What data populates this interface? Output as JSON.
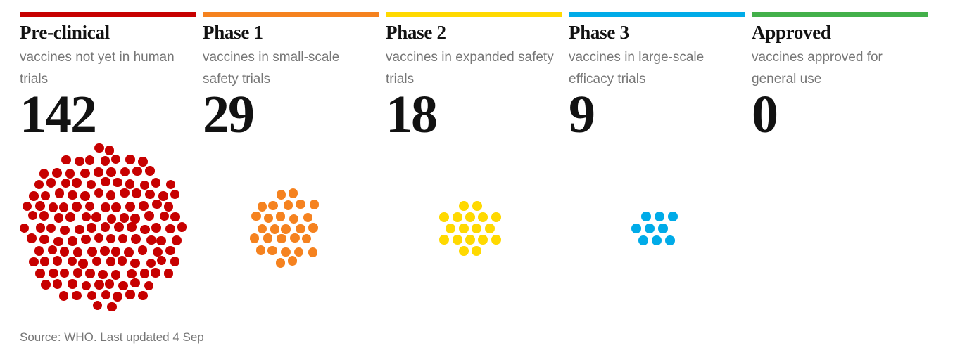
{
  "chart_data": {
    "type": "dot-cluster-unit-chart",
    "categories": [
      "Pre-clinical",
      "Phase 1",
      "Phase 2",
      "Phase 3",
      "Approved"
    ],
    "values": [
      142,
      29,
      18,
      9,
      0
    ],
    "phases": [
      {
        "label": "Pre-clinical",
        "description": "vaccines not yet in human trials",
        "count": 142,
        "color": "#c70000"
      },
      {
        "label": "Phase 1",
        "description": "vaccines in small-scale safety trials",
        "count": 29,
        "color": "#f5821f"
      },
      {
        "label": "Phase 2",
        "description": "vaccines in expanded safety trials",
        "count": 18,
        "color": "#ffd900"
      },
      {
        "label": "Phase 3",
        "description": "vaccines in large-scale efficacy trials",
        "count": 9,
        "color": "#00abe8"
      },
      {
        "label": "Approved",
        "description": "vaccines approved for general use",
        "count": 0,
        "color": "#43b04a"
      }
    ],
    "source_note": "Source: WHO. Last updated 4 Sep",
    "legend": "none",
    "grid": false
  }
}
